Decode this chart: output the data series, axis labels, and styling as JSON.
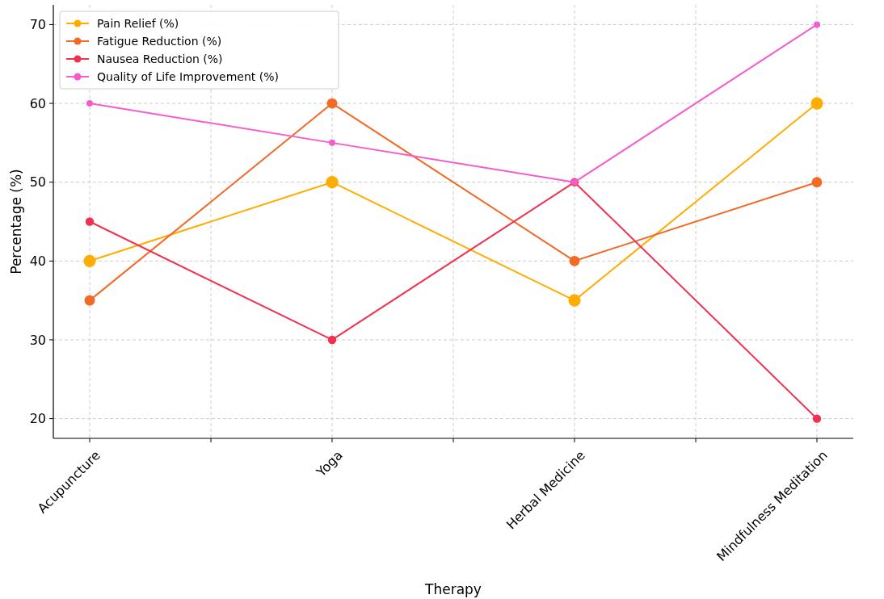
{
  "chart_data": {
    "type": "line",
    "xlabel": "Therapy",
    "ylabel": "Percentage (%)",
    "categories": [
      "Acupuncture",
      "Yoga",
      "Herbal Medicine",
      "Mindfulness Meditation"
    ],
    "series": [
      {
        "name": "Pain Relief (%)",
        "color": "#ffad00",
        "values": [
          40,
          50,
          35,
          60
        ]
      },
      {
        "name": "Fatigue Reduction (%)",
        "color": "#f26a26",
        "values": [
          35,
          60,
          40,
          50
        ]
      },
      {
        "name": "Nausea Reduction (%)",
        "color": "#f0314f",
        "values": [
          45,
          30,
          50,
          20
        ]
      },
      {
        "name": "Quality of Life Improvement (%)",
        "color": "#f55ccf",
        "values": [
          60,
          55,
          50,
          70
        ]
      }
    ],
    "ylim": [
      17.5,
      72.5
    ],
    "yticks": [
      20,
      30,
      40,
      50,
      60,
      70
    ],
    "grid": true,
    "legend": "top left",
    "marker": "circle",
    "line_style": "solid"
  }
}
